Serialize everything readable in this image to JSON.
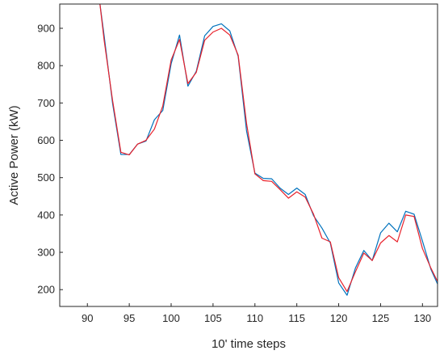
{
  "chart_data": {
    "type": "line",
    "title": "",
    "xlabel": "10' time steps",
    "ylabel": "Active Power (kW)",
    "xlim": [
      86.7,
      131.8
    ],
    "ylim": [
      155,
      965
    ],
    "xticks": [
      90,
      95,
      100,
      105,
      110,
      115,
      120,
      125,
      130
    ],
    "yticks": [
      200,
      300,
      400,
      500,
      600,
      700,
      800,
      900
    ],
    "grid": false,
    "legend": "none",
    "series": [
      {
        "color": "#0072BD",
        "x": [
          91.5,
          92,
          93,
          94,
          95,
          96,
          97,
          98,
          99,
          100,
          101,
          102,
          103,
          104,
          105,
          106,
          107,
          108,
          109,
          110,
          111,
          112,
          113,
          114,
          115,
          116,
          117,
          118,
          119,
          120,
          121,
          122,
          123,
          124,
          125,
          126,
          127,
          128,
          129,
          130,
          131,
          131.8
        ],
        "values": [
          965,
          880,
          700,
          562,
          562,
          590,
          598,
          655,
          680,
          805,
          882,
          745,
          785,
          880,
          905,
          912,
          893,
          825,
          625,
          512,
          498,
          497,
          472,
          455,
          472,
          455,
          398,
          365,
          325,
          218,
          185,
          258,
          305,
          278,
          352,
          378,
          355,
          410,
          402,
          330,
          255,
          215
        ]
      },
      {
        "color": "#E8202A",
        "x": [
          91.5,
          92,
          93,
          94,
          95,
          96,
          97,
          98,
          99,
          100,
          101,
          102,
          103,
          104,
          105,
          106,
          107,
          108,
          109,
          110,
          111,
          112,
          113,
          114,
          115,
          116,
          117,
          118,
          119,
          120,
          121,
          122,
          123,
          124,
          125,
          126,
          127,
          128,
          129,
          130,
          131,
          131.8
        ],
        "values": [
          965,
          868,
          708,
          568,
          561,
          590,
          600,
          630,
          692,
          815,
          870,
          752,
          782,
          868,
          890,
          900,
          882,
          828,
          645,
          510,
          492,
          490,
          468,
          445,
          462,
          448,
          402,
          338,
          328,
          232,
          195,
          248,
          298,
          278,
          325,
          345,
          328,
          400,
          396,
          310,
          258,
          222
        ]
      }
    ]
  }
}
